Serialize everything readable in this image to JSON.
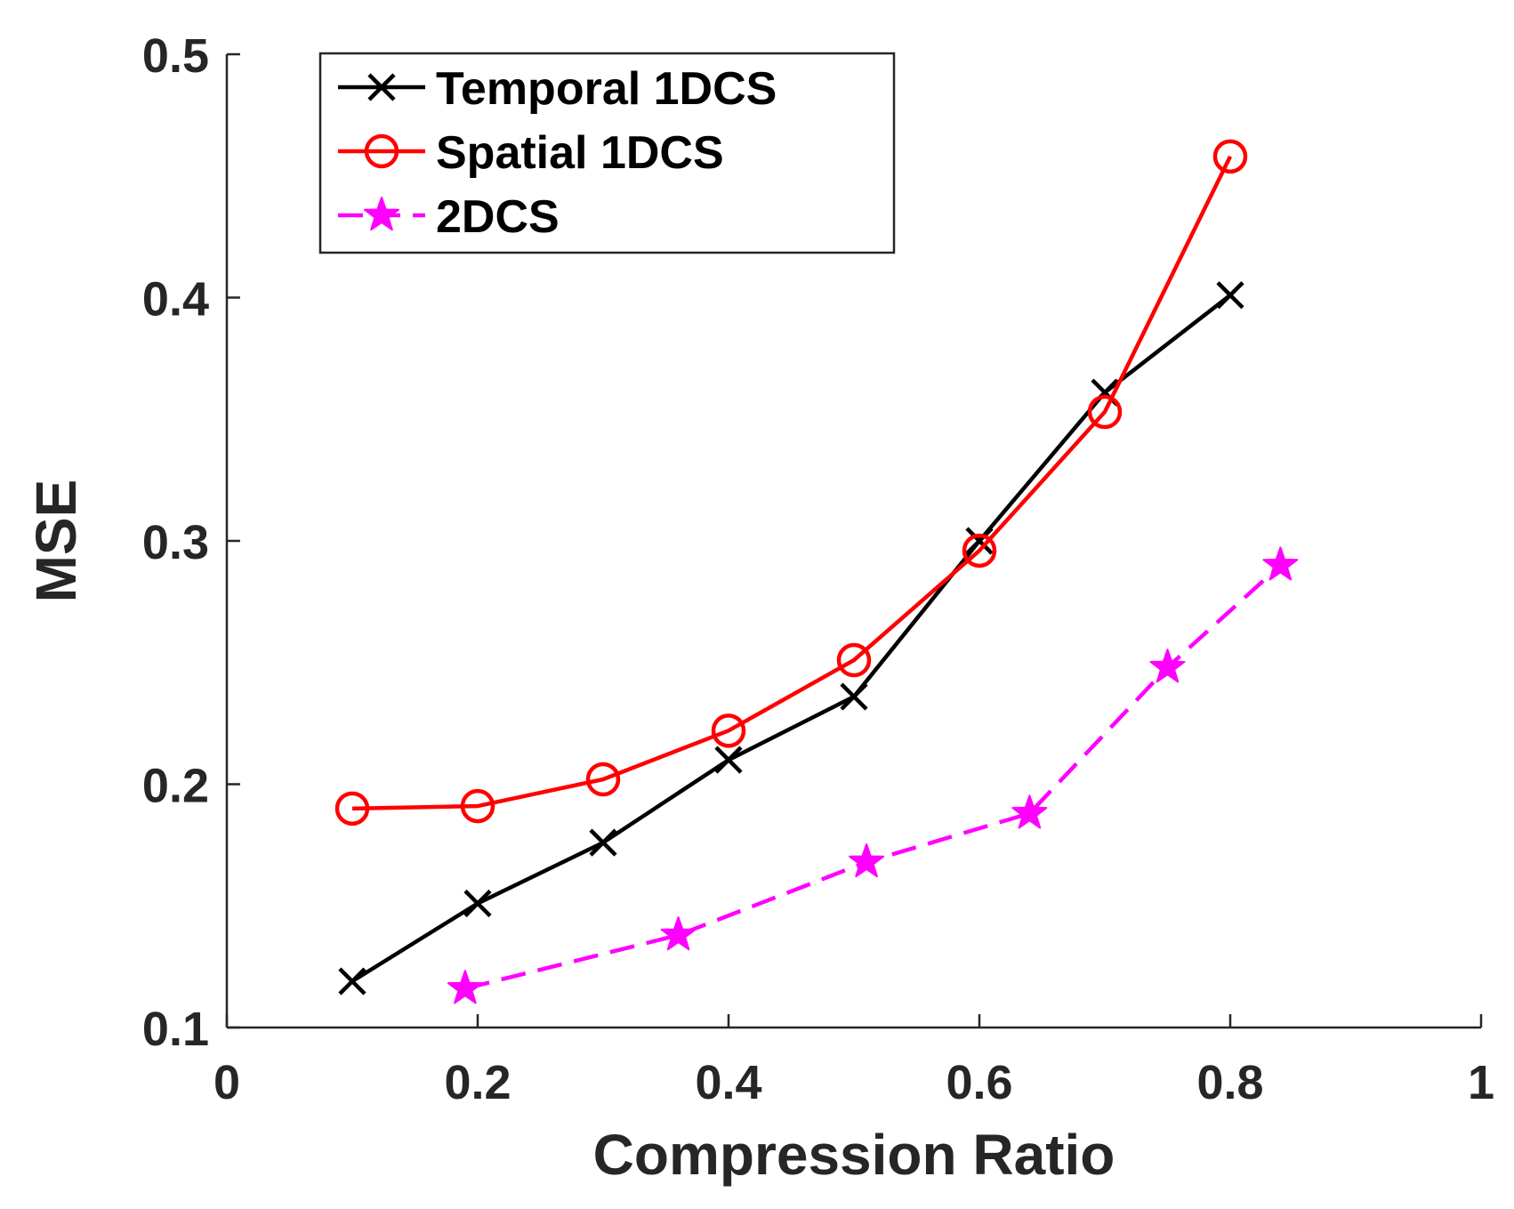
{
  "chart_data": {
    "type": "line",
    "title": "",
    "xlabel": "Compression Ratio",
    "ylabel": "MSE",
    "xlim": [
      0,
      1
    ],
    "ylim": [
      0.1,
      0.5
    ],
    "xticks": [
      0,
      0.2,
      0.4,
      0.6,
      0.8,
      1
    ],
    "yticks": [
      0.1,
      0.2,
      0.3,
      0.4,
      0.5
    ],
    "xtick_labels": [
      "0",
      "0.2",
      "0.4",
      "0.6",
      "0.8",
      "1"
    ],
    "ytick_labels": [
      "0.1",
      "0.2",
      "0.3",
      "0.4",
      "0.5"
    ],
    "grid": false,
    "legend_position": "top-left",
    "series": [
      {
        "name": "Temporal 1DCS",
        "color": "#000000",
        "marker": "x",
        "line_style": "solid",
        "x": [
          0.1,
          0.2,
          0.3,
          0.4,
          0.5,
          0.6,
          0.7,
          0.8
        ],
        "y": [
          0.119,
          0.151,
          0.176,
          0.21,
          0.236,
          0.3,
          0.361,
          0.401
        ]
      },
      {
        "name": "Spatial 1DCS",
        "color": "#ff0000",
        "marker": "circle",
        "line_style": "solid",
        "x": [
          0.1,
          0.2,
          0.3,
          0.4,
          0.5,
          0.6,
          0.7,
          0.8
        ],
        "y": [
          0.19,
          0.191,
          0.202,
          0.222,
          0.251,
          0.296,
          0.353,
          0.458
        ]
      },
      {
        "name": "2DCS",
        "color": "#ff00ff",
        "marker": "star",
        "line_style": "dashed",
        "x": [
          0.19,
          0.36,
          0.51,
          0.64,
          0.75,
          0.84
        ],
        "y": [
          0.116,
          0.138,
          0.168,
          0.188,
          0.248,
          0.29
        ]
      }
    ]
  }
}
